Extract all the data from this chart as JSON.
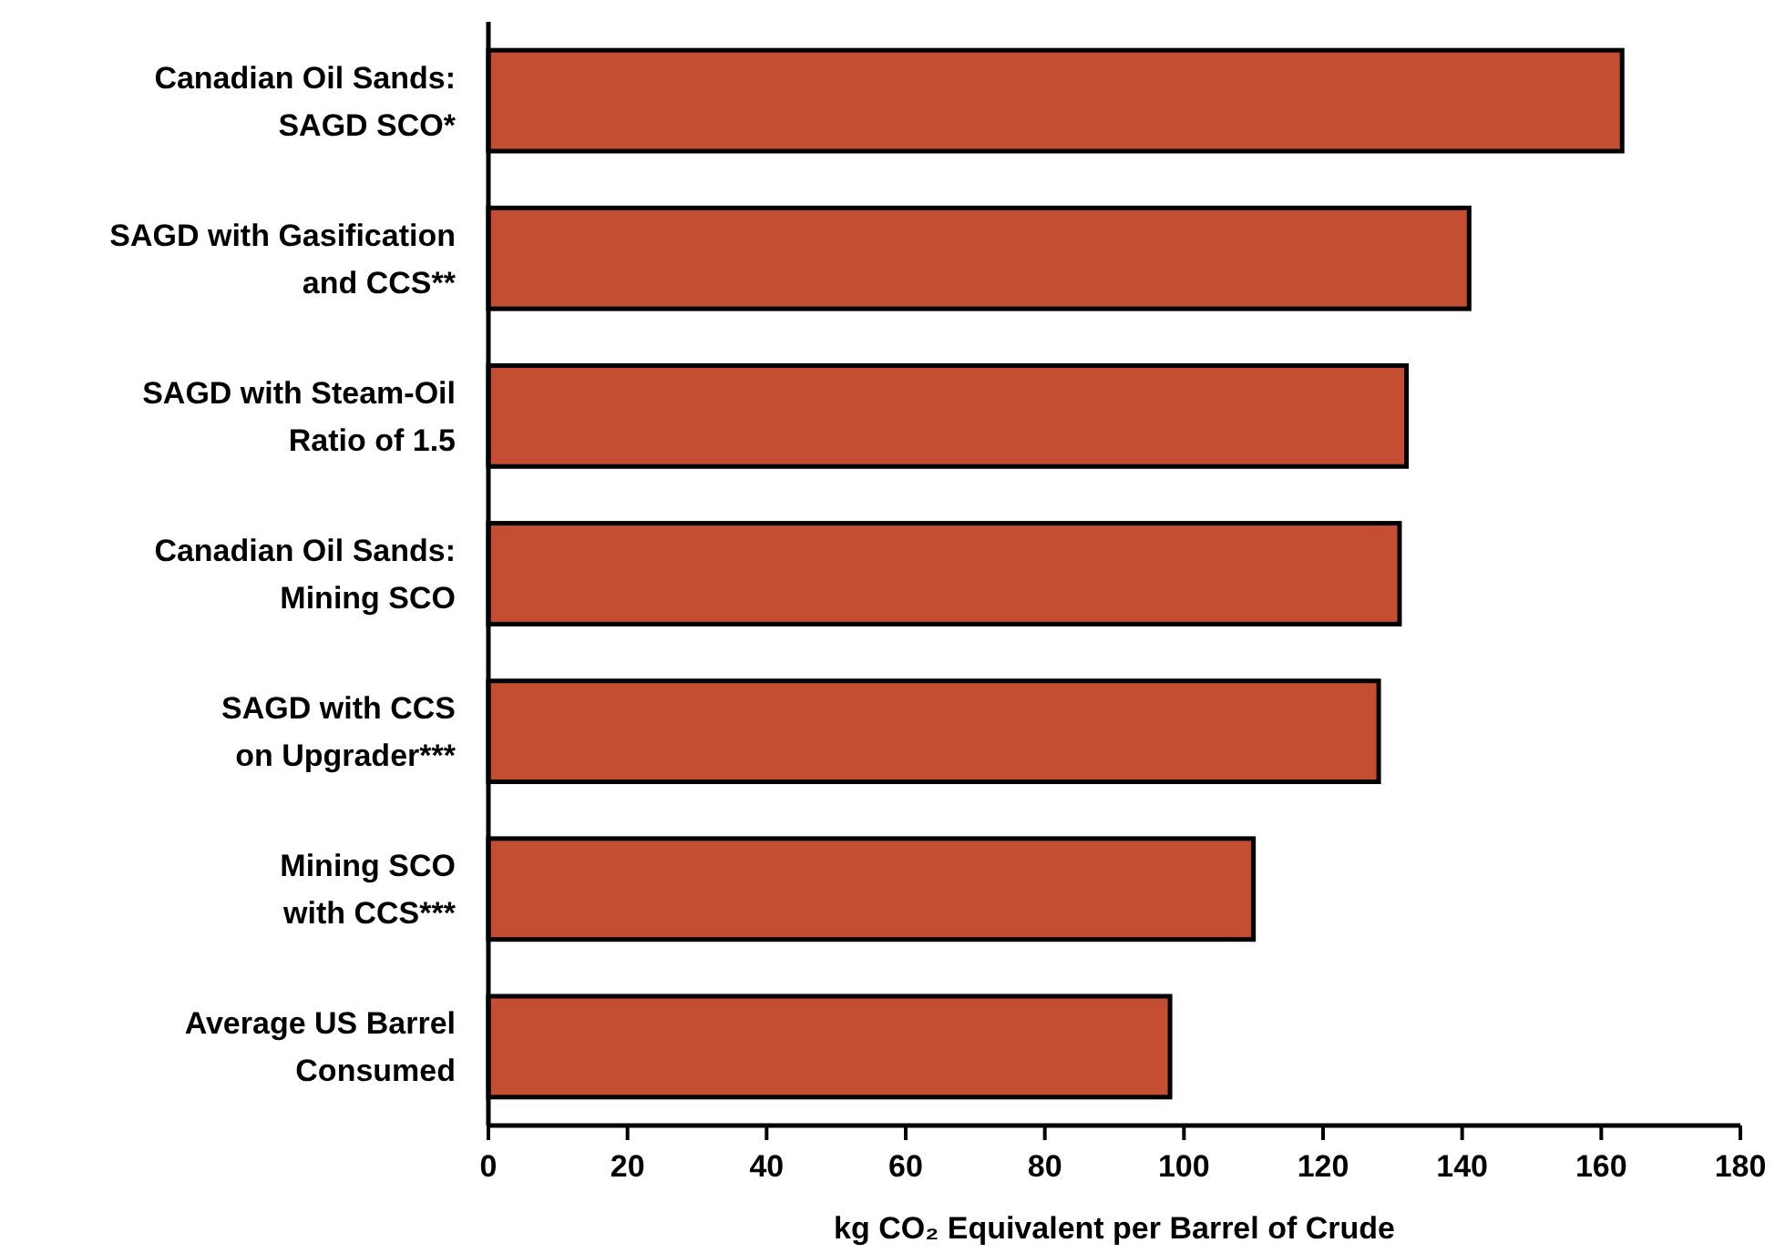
{
  "chart_data": {
    "type": "bar",
    "orientation": "horizontal",
    "xlabel": "kg CO₂ Equivalent per Barrel of Crude",
    "categories": [
      "Canadian Oil Sands:\nSAGD SCO*",
      "SAGD with Gasification\nand CCS**",
      "SAGD with Steam-Oil\nRatio of 1.5",
      "Canadian Oil Sands:\nMining SCO",
      "SAGD with CCS\non Upgrader***",
      "Mining SCO\nwith CCS***",
      "Average US Barrel\nConsumed"
    ],
    "values": [
      163,
      141,
      132,
      131,
      128,
      110,
      98
    ],
    "color": "#c44e32",
    "xlim": [
      0,
      180
    ],
    "xticks": [
      0,
      20,
      40,
      60,
      80,
      100,
      120,
      140,
      160,
      180
    ],
    "grid": false
  }
}
